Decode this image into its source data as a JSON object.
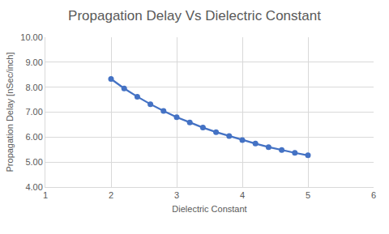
{
  "chart_data": {
    "type": "line",
    "title": "Propagation Delay Vs Dielectric Constant",
    "x_label": "Dielectric Constant",
    "y_label": "Propagation Delay [nSec/inch]",
    "x": [
      2.0,
      2.2,
      2.4,
      2.6,
      2.8,
      3.0,
      3.2,
      3.4,
      3.6,
      3.8,
      4.0,
      4.2,
      4.4,
      4.6,
      4.8,
      5.0
    ],
    "values": [
      8.33,
      7.95,
      7.62,
      7.32,
      7.05,
      6.8,
      6.59,
      6.38,
      6.2,
      6.04,
      5.88,
      5.74,
      5.6,
      5.48,
      5.37,
      5.27
    ],
    "color": "#4472c4",
    "marker": "circle",
    "line_style": "solid",
    "xlim": [
      1,
      6
    ],
    "xticks": [
      1,
      2,
      3,
      4,
      5,
      6
    ],
    "ylim": [
      4,
      10
    ],
    "yticks": [
      {
        "value": 4,
        "label": "4.00"
      },
      {
        "value": 5,
        "label": "5.00"
      },
      {
        "value": 6,
        "label": "6.00"
      },
      {
        "value": 7,
        "label": "7.00"
      },
      {
        "value": 8,
        "label": "8.00"
      },
      {
        "value": 9,
        "label": "9.00"
      },
      {
        "value": 10,
        "label": "10.00"
      }
    ],
    "grid": true
  }
}
